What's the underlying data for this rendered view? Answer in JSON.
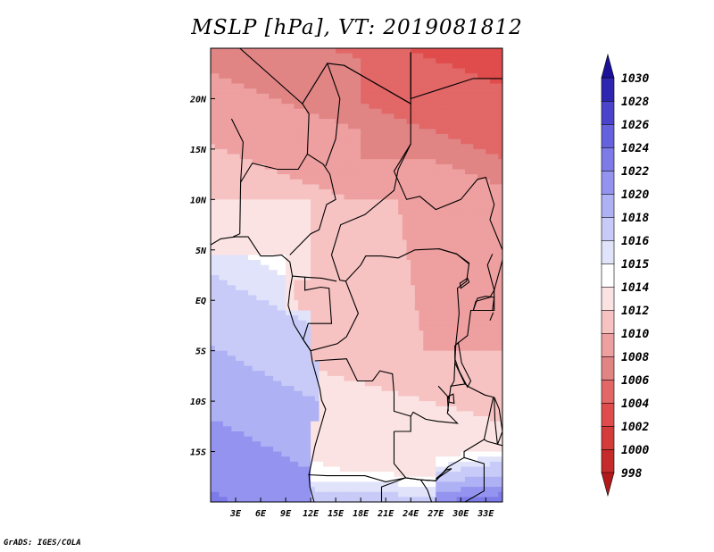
{
  "title": "MSLP [hPa], VT: 2019081812",
  "footer": "GrADS: IGES/COLA",
  "chart_data": {
    "type": "heatmap",
    "title": "MSLP [hPa], VT: 2019081812",
    "lon_range": [
      0,
      35
    ],
    "lat_range": [
      -20,
      25
    ],
    "x_ticks": [
      "3E",
      "6E",
      "9E",
      "12E",
      "15E",
      "18E",
      "21E",
      "24E",
      "27E",
      "30E",
      "33E"
    ],
    "x_tick_values": [
      3,
      6,
      9,
      12,
      15,
      18,
      21,
      24,
      27,
      30,
      33
    ],
    "y_ticks": [
      "20N",
      "15N",
      "10N",
      "5N",
      "EQ",
      "5S",
      "10S",
      "15S"
    ],
    "y_tick_values": [
      20,
      15,
      10,
      5,
      0,
      -5,
      -10,
      -15
    ],
    "colorbar": {
      "levels": [
        998,
        1000,
        1002,
        1004,
        1006,
        1008,
        1010,
        1012,
        1014,
        1015,
        1016,
        1018,
        1020,
        1022,
        1024,
        1026,
        1028,
        1030
      ],
      "colors": [
        "#b3191b",
        "#c52b2b",
        "#d43c3c",
        "#e04c4c",
        "#e26767",
        "#e08484",
        "#ee9f9f",
        "#f6c2c2",
        "#fbe3e3",
        "#ffffff",
        "#e1e3fb",
        "#c8cbf7",
        "#aeb1f4",
        "#9494f0",
        "#7d7be8",
        "#6462dc",
        "#4a44cc",
        "#2e26b0",
        "#1a1199"
      ],
      "extend": "both"
    },
    "grid": false
  }
}
